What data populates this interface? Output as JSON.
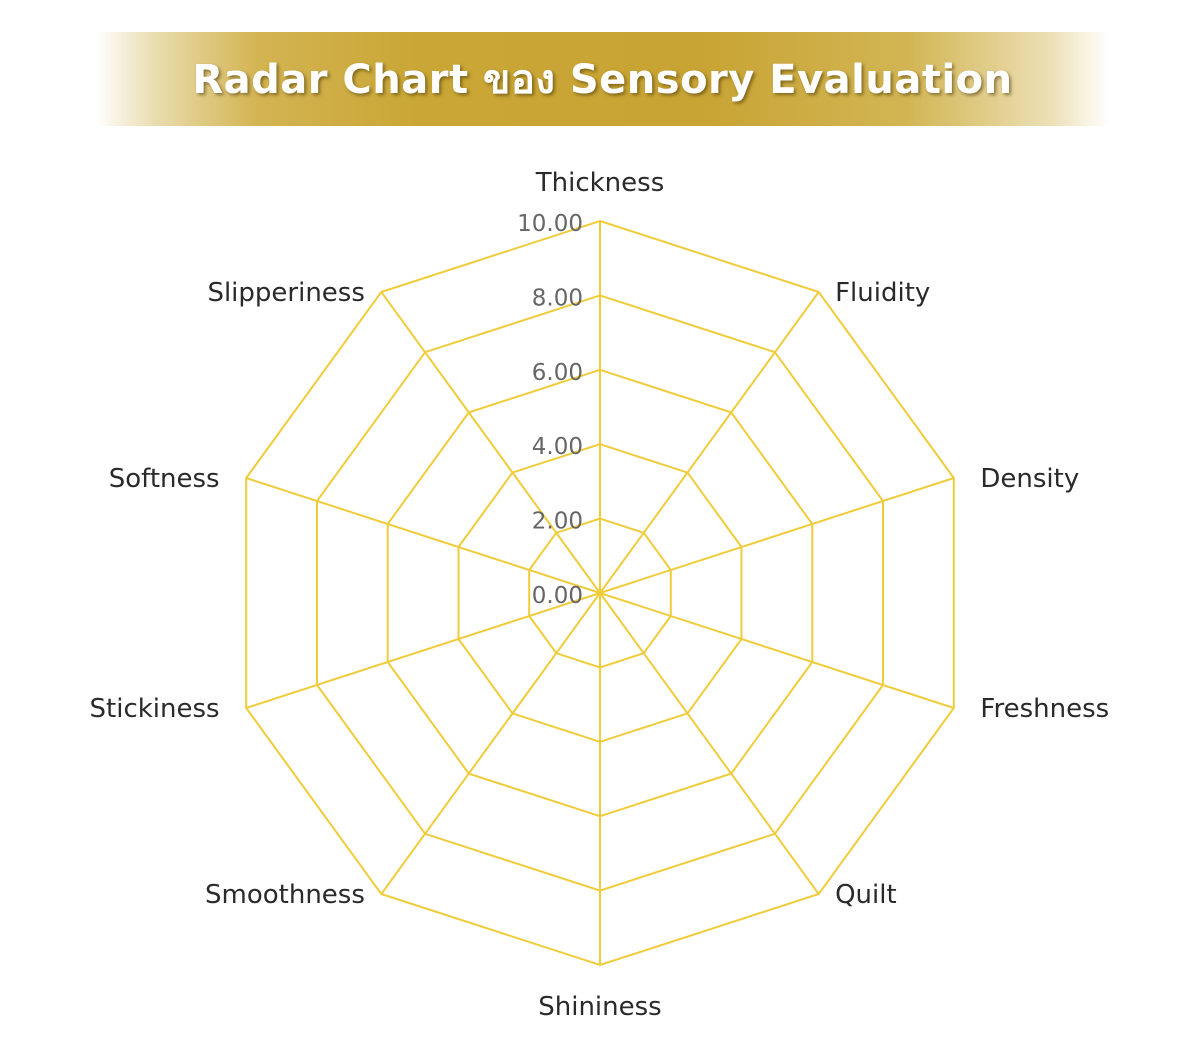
{
  "title": "Radar Chart ของ Sensory Evaluation",
  "colors": {
    "grid": "#f0cc3c",
    "banner_gold": "#c9a635",
    "title_text": "#ffffff",
    "axis_label": "#2a2a2a",
    "tick_label": "#666666"
  },
  "chart_data": {
    "type": "radar",
    "title": "Radar Chart ของ Sensory Evaluation",
    "axes": [
      "Thickness",
      "Fluidity",
      "Density",
      "Freshness",
      "Quilt",
      "Shininess",
      "Smoothness",
      "Stickiness",
      "Softness",
      "Slipperiness"
    ],
    "rlim": [
      0,
      10
    ],
    "ticks": [
      0,
      2,
      4,
      6,
      8,
      10
    ],
    "tick_labels": [
      "0.00",
      "2.00",
      "4.00",
      "6.00",
      "8.00",
      "10.00"
    ],
    "grid": true,
    "series": []
  }
}
